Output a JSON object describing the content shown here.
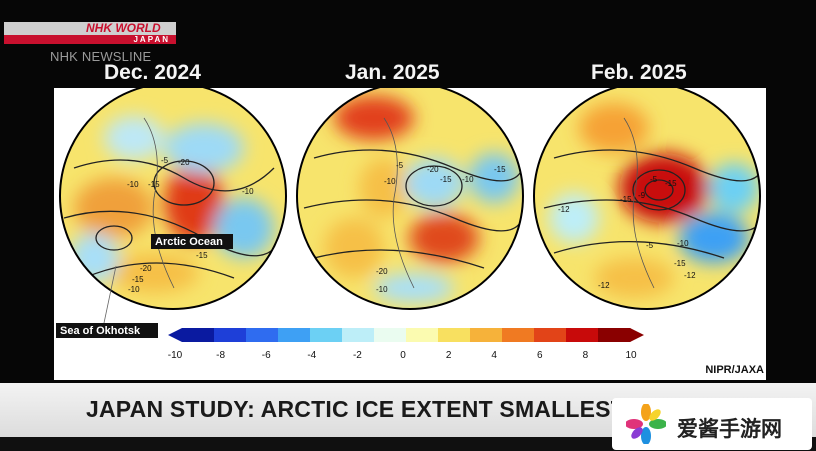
{
  "broadcaster": {
    "logo_top": "NHK WORLD",
    "logo_bottom": "JAPAN",
    "program": "NHK NEWSLINE"
  },
  "maps": [
    {
      "month": "Dec. 2024",
      "labels": [
        "-5",
        "-20",
        "-10",
        "-15",
        "-10",
        "-15",
        "-20",
        "-15",
        "-10"
      ]
    },
    {
      "month": "Jan. 2025",
      "labels": [
        "-5",
        "-10",
        "-20",
        "-15",
        "-10",
        "-15",
        "-20",
        "-10"
      ]
    },
    {
      "month": "Feb. 2025",
      "labels": [
        "-5",
        "-15",
        "-12",
        "-15",
        "-12",
        "-10",
        "-5",
        "-15",
        "-12",
        "-9"
      ]
    }
  ],
  "annotations": {
    "arctic": "Arctic Ocean",
    "okhotsk": "Sea of Okhotsk"
  },
  "colorbar": {
    "ticks": [
      "-10",
      "-8",
      "-6",
      "-4",
      "-2",
      "0",
      "2",
      "4",
      "6",
      "8",
      "10"
    ],
    "colors": [
      "#0a1aa0",
      "#1e3fd8",
      "#2f6cf0",
      "#3ea0f4",
      "#6cd0f4",
      "#bdeef8",
      "#eafcf0",
      "#fbfbb0",
      "#f8e060",
      "#f6b23a",
      "#f07a22",
      "#e24418",
      "#c80a0a",
      "#8a0000"
    ]
  },
  "credit": "NIPR/JAXA",
  "ticker": {
    "headline": "JAPAN STUDY: ARCTIC ICE EXTENT SMALLEST ON RECORD"
  },
  "watermark": {
    "text": "爱酱手游网"
  }
}
